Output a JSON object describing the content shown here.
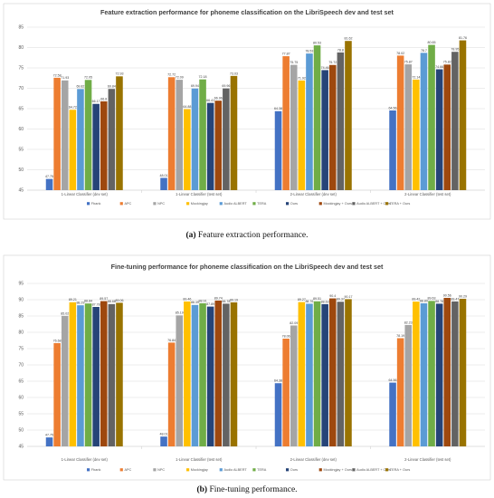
{
  "series_colors": [
    "#4472c4",
    "#ed7d31",
    "#a5a5a5",
    "#ffc000",
    "#5b9bd5",
    "#70ad47",
    "#264478",
    "#9e480e",
    "#636363",
    "#997300"
  ],
  "chart_data": [
    {
      "type": "bar",
      "title": "Feature extraction performance for phoneme classification on the LibriSpeech dev and test set",
      "caption_label": "(a)",
      "caption_text": " Feature extraction performance.",
      "categories": [
        "1-Linear Classifier (dev set)",
        "1-Linear Classifier (test set)",
        "2-Linear Classifier (dev set)",
        "2-Linear Classifier (test set)"
      ],
      "ylim": [
        45,
        85
      ],
      "yticks": [
        45,
        50,
        55,
        60,
        65,
        70,
        75,
        80,
        85
      ],
      "grid": true,
      "legend_position": "bottom",
      "series": [
        {
          "name": "Fbank",
          "values": [
            47.75,
            48.01,
            64.38,
            64.56
          ]
        },
        {
          "name": "APC",
          "values": [
            72.58,
            72.72,
            77.87,
            78.02
          ]
        },
        {
          "name": "NPC",
          "values": [
            71.93,
            72.09,
            75.75,
            75.87
          ]
        },
        {
          "name": "Mockingjay",
          "values": [
            64.72,
            64.88,
            71.92,
            72.14
          ]
        },
        {
          "name": "Audio ALBERT",
          "values": [
            69.82,
            69.94,
            78.53,
            78.7
          ]
        },
        {
          "name": "TERA",
          "values": [
            72.05,
            72.18,
            80.53,
            80.65
          ]
        },
        {
          "name": "Ours",
          "values": [
            66.17,
            66.41,
            74.46,
            74.66
          ]
        },
        {
          "name": "Mockingjay + Ours",
          "values": [
            66.8,
            66.96,
            75.72,
            75.82
          ]
        },
        {
          "name": "Audio ALBERT + Ours",
          "values": [
            69.84,
            69.96,
            78.8,
            78.95
          ]
        },
        {
          "name": "TERA + Ours",
          "values": [
            72.93,
            73.03,
            81.62,
            81.76
          ]
        }
      ]
    },
    {
      "type": "bar",
      "title": "Fine-tuning performance for phoneme classification on the LibriSpeech dev and test set",
      "caption_label": "(b)",
      "caption_text": " Fine-tuning performance.",
      "categories": [
        "1-Linear Classifier (dev set)",
        "1-Linear Classifier (test set)",
        "2-Linear Classifier (dev set)",
        "2-Linear Classifier (test set)"
      ],
      "ylim": [
        45,
        95
      ],
      "yticks": [
        45,
        50,
        55,
        60,
        65,
        70,
        75,
        80,
        85,
        90,
        95
      ],
      "grid": true,
      "legend_position": "bottom",
      "series": [
        {
          "name": "Fbank",
          "values": [
            47.75,
            48.01,
            64.38,
            64.56
          ]
        },
        {
          "name": "APC",
          "values": [
            76.68,
            76.84,
            78.06,
            78.19
          ]
        },
        {
          "name": "NPC",
          "values": [
            85.02,
            85.19,
            82.09,
            82.23
          ]
        },
        {
          "name": "Mockingjay",
          "values": [
            89.21,
            89.46,
            89.27,
            89.42
          ]
        },
        {
          "name": "Audio ALBERT",
          "values": [
            88.29,
            88.39,
            88.76,
            88.89
          ]
        },
        {
          "name": "TERA",
          "values": [
            88.84,
            88.91,
            89.51,
            89.63
          ]
        },
        {
          "name": "Ours",
          "values": [
            87.78,
            87.89,
            88.63,
            88.78
          ]
        },
        {
          "name": "Mockingjay + Ours",
          "values": [
            89.57,
            89.74,
            90.4,
            90.56
          ]
        },
        {
          "name": "Audio ALBERT + Ours",
          "values": [
            88.66,
            88.78,
            89.37,
            89.47
          ]
        },
        {
          "name": "TERA + Ours",
          "values": [
            89.06,
            89.19,
            90.17,
            90.29
          ]
        }
      ]
    }
  ]
}
